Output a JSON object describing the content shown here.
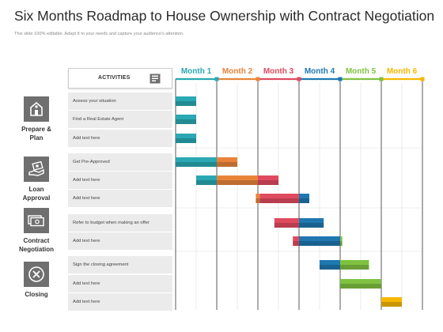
{
  "title": "Six Months Roadmap to House Ownership with Contract Negotiation",
  "subtitle": "This slide 100% editable. Adapt  It to your needs and capture your audience's attention.",
  "activities_label": "ACTIVITIES",
  "months": [
    {
      "label": "Month 1",
      "color": "#2aa8b3"
    },
    {
      "label": "Month 2",
      "color": "#e8843a"
    },
    {
      "label": "Month 3",
      "color": "#e04a5f"
    },
    {
      "label": "Month 4",
      "color": "#1f78b0"
    },
    {
      "label": "Month 5",
      "color": "#7fc241"
    },
    {
      "label": "Month 6",
      "color": "#f5b700"
    }
  ],
  "categories": [
    {
      "label_lines": [
        "Prepare &",
        "Plan"
      ],
      "icon": "house-icon"
    },
    {
      "label_lines": [
        "Loan",
        "Approval"
      ],
      "icon": "hand-money-icon"
    },
    {
      "label_lines": [
        "Contract",
        "Negotiation"
      ],
      "icon": "money-bill-icon"
    },
    {
      "label_lines": [
        "Closing"
      ],
      "icon": "close-circle-icon"
    }
  ],
  "tasks": [
    {
      "label": "Assess your situation"
    },
    {
      "label": "Find a Real Estate Agent"
    },
    {
      "label": "Add text here"
    },
    {
      "label": "Get Pre-Approved"
    },
    {
      "label": "Add text here"
    },
    {
      "label": "Add text here"
    },
    {
      "label": "Refer to budget when making an offer"
    },
    {
      "label": "Add text here"
    },
    {
      "label": "Sign the closing agreement"
    },
    {
      "label": "Add text here"
    },
    {
      "label": "Add text here"
    }
  ],
  "chart_data": {
    "type": "gantt",
    "units": "months",
    "range": [
      0,
      6
    ],
    "bars": [
      {
        "task": 0,
        "segments": [
          {
            "start": 0.0,
            "end": 0.5,
            "month": 0
          }
        ]
      },
      {
        "task": 1,
        "segments": [
          {
            "start": 0.0,
            "end": 0.5,
            "month": 0
          }
        ]
      },
      {
        "task": 2,
        "segments": [
          {
            "start": 0.0,
            "end": 0.5,
            "month": 0
          }
        ]
      },
      {
        "task": 3,
        "segments": [
          {
            "start": 0.0,
            "end": 1.0,
            "month": 0
          },
          {
            "start": 1.0,
            "end": 1.5,
            "month": 1
          }
        ]
      },
      {
        "task": 4,
        "segments": [
          {
            "start": 0.5,
            "end": 1.0,
            "month": 0
          },
          {
            "start": 1.0,
            "end": 2.0,
            "month": 1
          },
          {
            "start": 2.0,
            "end": 2.5,
            "month": 2
          }
        ]
      },
      {
        "task": 5,
        "segments": [
          {
            "start": 1.95,
            "end": 2.05,
            "month": 1
          },
          {
            "start": 2.05,
            "end": 3.0,
            "month": 2
          },
          {
            "start": 3.0,
            "end": 3.25,
            "month": 3
          }
        ]
      },
      {
        "task": 6,
        "segments": [
          {
            "start": 2.4,
            "end": 3.0,
            "month": 2
          },
          {
            "start": 3.0,
            "end": 3.6,
            "month": 3
          }
        ]
      },
      {
        "task": 7,
        "segments": [
          {
            "start": 2.85,
            "end": 3.0,
            "month": 2
          },
          {
            "start": 3.0,
            "end": 4.0,
            "month": 3
          },
          {
            "start": 4.0,
            "end": 4.05,
            "month": 4
          }
        ]
      },
      {
        "task": 8,
        "segments": [
          {
            "start": 3.5,
            "end": 4.0,
            "month": 3
          },
          {
            "start": 4.0,
            "end": 4.7,
            "month": 4
          }
        ]
      },
      {
        "task": 9,
        "segments": [
          {
            "start": 4.0,
            "end": 5.0,
            "month": 4
          }
        ]
      },
      {
        "task": 10,
        "segments": [
          {
            "start": 5.0,
            "end": 5.5,
            "month": 5
          }
        ]
      }
    ]
  }
}
